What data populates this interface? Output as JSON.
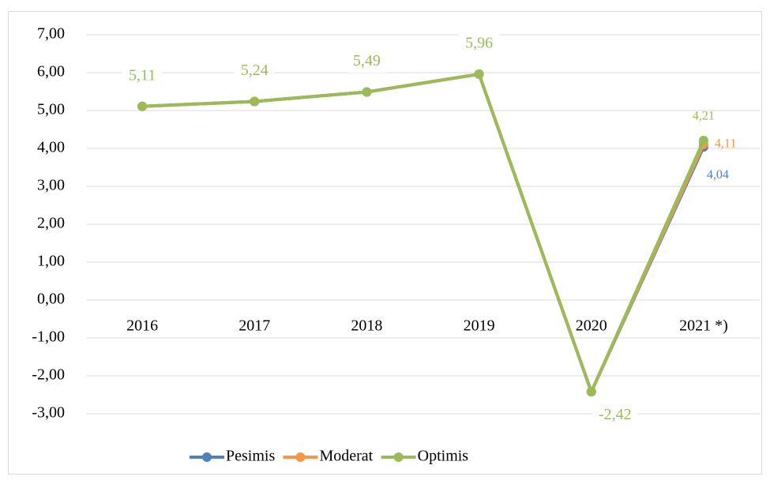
{
  "chart_data": {
    "type": "line",
    "categories": [
      "2016",
      "2017",
      "2018",
      "2019",
      "2020",
      "2021 *)"
    ],
    "series": [
      {
        "name": "Pesimis",
        "color": "#4f81bd",
        "values": [
          5.11,
          5.24,
          5.49,
          5.96,
          -2.42,
          4.04
        ],
        "value_labels": [
          null,
          null,
          null,
          null,
          null,
          "4,04"
        ]
      },
      {
        "name": "Moderat",
        "color": "#f79646",
        "values": [
          5.11,
          5.24,
          5.49,
          5.96,
          -2.42,
          4.11
        ],
        "value_labels": [
          null,
          null,
          null,
          null,
          null,
          "4,11"
        ]
      },
      {
        "name": "Optimis",
        "color": "#9bbb59",
        "values": [
          5.11,
          5.24,
          5.49,
          5.96,
          -2.42,
          4.21
        ],
        "value_labels": [
          "5,11",
          "5,24",
          "5,49",
          "5,96",
          "-2,42",
          "4,21"
        ]
      }
    ],
    "ylim": [
      -3,
      7
    ],
    "yticks": [
      {
        "value": -3,
        "label": "-3,00"
      },
      {
        "value": -2,
        "label": "-2,00"
      },
      {
        "value": -1,
        "label": "-1,00"
      },
      {
        "value": 0,
        "label": "0,00"
      },
      {
        "value": 1,
        "label": "1,00"
      },
      {
        "value": 2,
        "label": "2,00"
      },
      {
        "value": 3,
        "label": "3,00"
      },
      {
        "value": 4,
        "label": "4,00"
      },
      {
        "value": 5,
        "label": "5,00"
      },
      {
        "value": 6,
        "label": "6,00"
      },
      {
        "value": 7,
        "label": "7,00"
      }
    ],
    "grid": true,
    "legend": "bottom"
  }
}
